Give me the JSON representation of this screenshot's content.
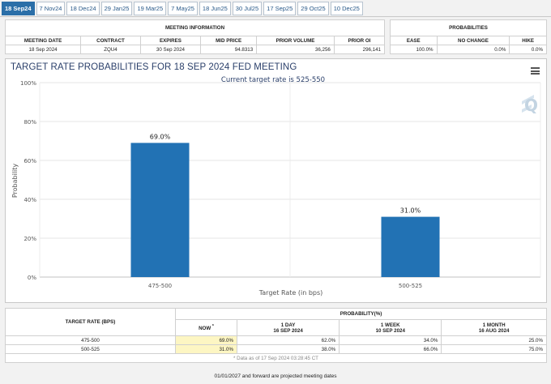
{
  "tabs": [
    "18 Sep24",
    "7 Nov24",
    "18 Dec24",
    "29 Jan25",
    "19 Mar25",
    "7 May25",
    "18 Jun25",
    "30 Jul25",
    "17 Sep25",
    "29 Oct25",
    "10 Dec25"
  ],
  "meeting_info": {
    "title": "MEETING INFORMATION",
    "headers": [
      "MEETING DATE",
      "CONTRACT",
      "EXPIRES",
      "MID PRICE",
      "PRIOR VOLUME",
      "PRIOR OI"
    ],
    "values": [
      "18 Sep 2024",
      "ZQU4",
      "30 Sep 2024",
      "94.8313",
      "36,256",
      "296,141"
    ]
  },
  "probabilities": {
    "title": "PROBABILITIES",
    "headers": [
      "EASE",
      "NO CHANGE",
      "HIKE"
    ],
    "values": [
      "100.0%",
      "0.0%",
      "0.0%"
    ]
  },
  "chart_data": {
    "type": "bar",
    "title": "TARGET RATE PROBABILITIES FOR 18 SEP 2024 FED MEETING",
    "subtitle": "Current target rate is 525-550",
    "xlabel": "Target Rate (in bps)",
    "ylabel": "Probability",
    "categories": [
      "475-500",
      "500-525"
    ],
    "values": [
      69.0,
      31.0
    ],
    "data_labels": [
      "69.0%",
      "31.0%"
    ],
    "ylim": [
      0,
      100
    ],
    "yticks": [
      "0%",
      "20%",
      "40%",
      "60%",
      "80%",
      "100%"
    ],
    "bar_color": "#2272b4",
    "grid": true,
    "legend": "none"
  },
  "bottom_table": {
    "target_header": "TARGET RATE (BPS)",
    "prob_header": "PROBABILITY(%)",
    "now_label": "NOW",
    "now_mark": "*",
    "columns": [
      {
        "label": "1 DAY",
        "date": "16 SEP 2024"
      },
      {
        "label": "1 WEEK",
        "date": "10 SEP 2024"
      },
      {
        "label": "1 MONTH",
        "date": "16 AUG 2024"
      }
    ],
    "rows": [
      {
        "rate": "475-500",
        "now": "69.0%",
        "vals": [
          "62.0%",
          "34.0%",
          "25.0%"
        ]
      },
      {
        "rate": "500-525",
        "now": "31.0%",
        "vals": [
          "38.0%",
          "66.0%",
          "75.0%"
        ]
      }
    ],
    "note": "* Data as of 17 Sep 2024 03:28:45 CT"
  },
  "footer": "01/01/2027 and forward are projected meeting dates"
}
